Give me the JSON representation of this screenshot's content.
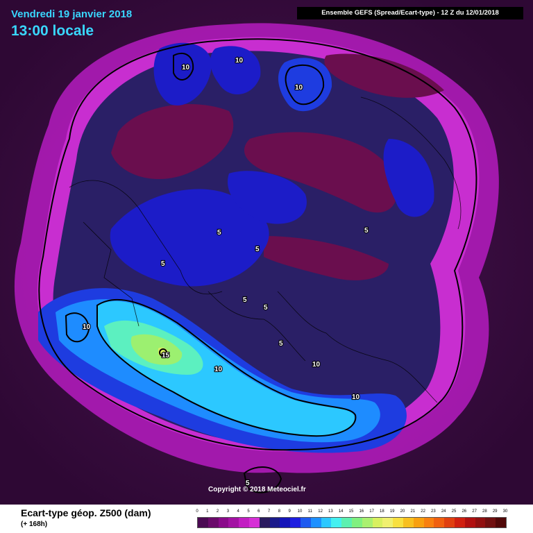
{
  "header": {
    "date_line": "Vendredi 19 janvier 2018",
    "time_line": "13:00 locale",
    "model_info": "Ensemble GEFS  (Spread/Ecart-type)  - 12 Z du 12/01/2018"
  },
  "map": {
    "contour_labels": [
      "10",
      "10",
      "10",
      "10",
      "5",
      "5",
      "5",
      "5",
      "5",
      "5",
      "5",
      "10",
      "15",
      "10",
      "10",
      "5"
    ],
    "copyright": "Copyright © 2018 Meteociel.fr"
  },
  "footer": {
    "title": "Ecart-type géop. Z500 (dam)",
    "subtitle": "(+ 168h)"
  },
  "scale": {
    "ticks": [
      "0",
      "1",
      "2",
      "3",
      "4",
      "5",
      "6",
      "7",
      "8",
      "9",
      "10",
      "11",
      "12",
      "13",
      "14",
      "15",
      "16",
      "17",
      "18",
      "19",
      "20",
      "21",
      "22",
      "23",
      "24",
      "25",
      "26",
      "27",
      "28",
      "29",
      "30"
    ],
    "colors": [
      "#4a0a52",
      "#6a0a6a",
      "#8a0a8a",
      "#a312a3",
      "#c21ec2",
      "#d630d6",
      "#2a1a5e",
      "#1a1a8a",
      "#1414b8",
      "#1e1ee0",
      "#1e5af0",
      "#1e90ff",
      "#2cc8ff",
      "#44f0f0",
      "#5cf0b0",
      "#80f080",
      "#aaf070",
      "#d8f060",
      "#f0f070",
      "#f8e040",
      "#f8c020",
      "#f8a010",
      "#f88010",
      "#f06010",
      "#e04010",
      "#d02010",
      "#b01010",
      "#901010",
      "#701010",
      "#500808"
    ]
  }
}
